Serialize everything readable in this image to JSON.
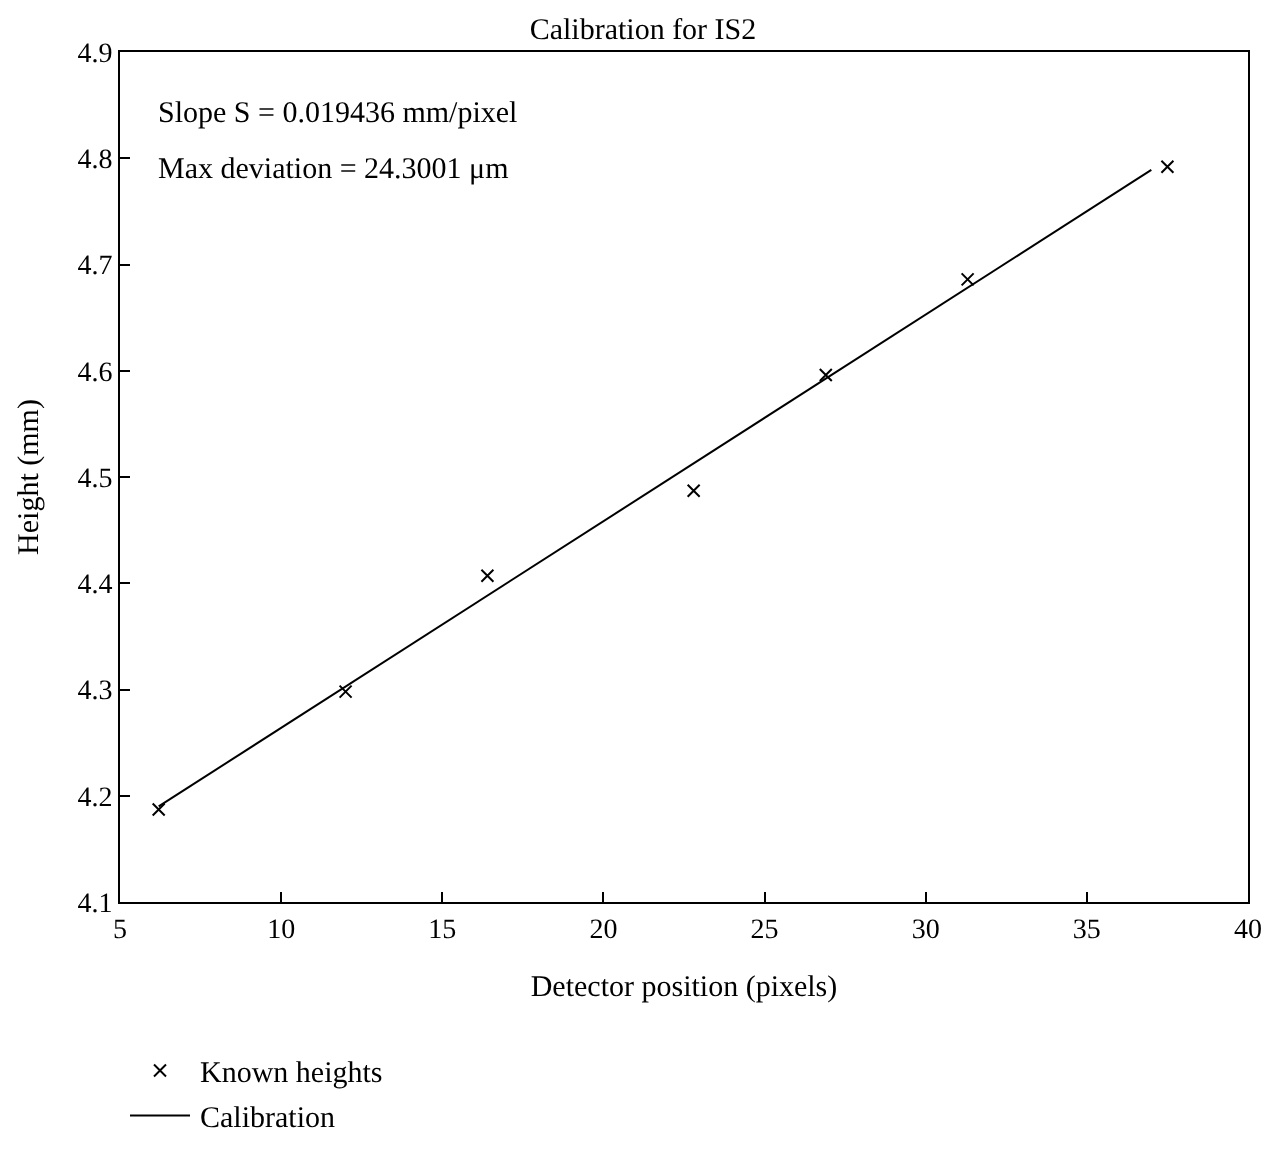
{
  "chart_data": {
    "type": "scatter",
    "title": "Calibration for IS2",
    "xlabel": "Detector position (pixels)",
    "ylabel": "Height (mm)",
    "annotations": [
      "Slope S = 0.019436 mm/pixel",
      "Max deviation = 24.3001 μm"
    ],
    "xlim": [
      5,
      40
    ],
    "xticks": [
      5,
      10,
      15,
      20,
      25,
      30,
      35,
      40
    ],
    "ylim": [
      4.1,
      4.9
    ],
    "yticks": [
      4.1,
      4.2,
      4.3,
      4.4,
      4.5,
      4.6,
      4.7,
      4.8,
      4.9
    ],
    "legend": "bottom",
    "series": [
      {
        "name": "Known heights",
        "marker": "cross",
        "color": "#000000",
        "x": [
          6.2,
          12.0,
          16.4,
          22.8,
          26.9,
          31.3,
          37.5
        ],
        "values": [
          4.187,
          4.298,
          4.407,
          4.487,
          4.596,
          4.686,
          4.792
        ]
      },
      {
        "name": "Calibration",
        "type": "line",
        "marker": "none",
        "line_style": "solid",
        "color": "#000000",
        "x": [
          6.2,
          37.0
        ],
        "values": [
          4.19,
          4.789
        ]
      }
    ]
  }
}
